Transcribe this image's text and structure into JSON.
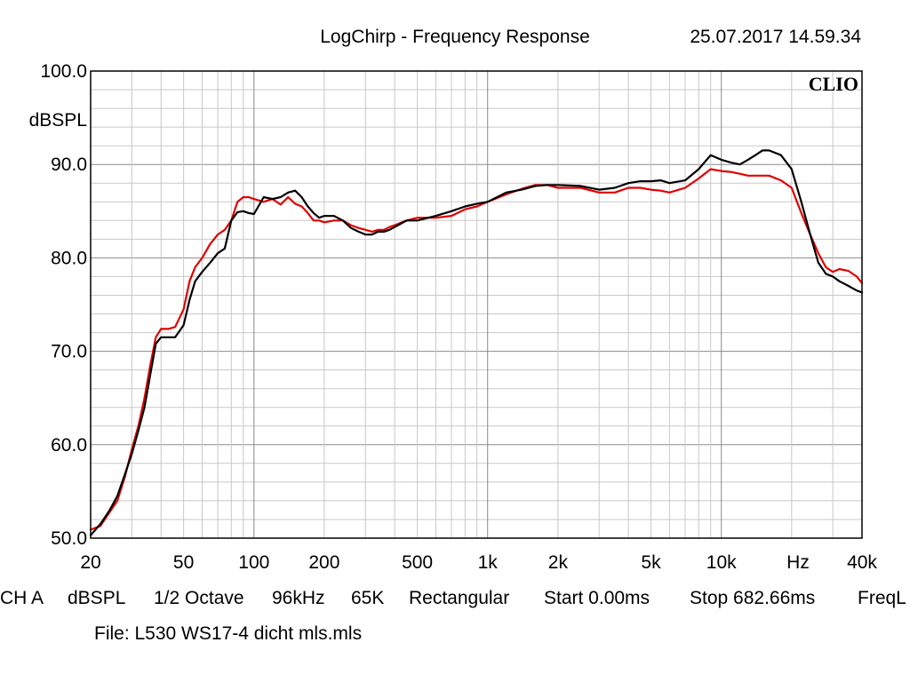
{
  "header": {
    "title": "LogChirp - Frequency Response",
    "timestamp": "25.07.2017 14.59.34",
    "logo": "CLIO"
  },
  "footer": {
    "settings": [
      "CH A",
      "dBSPL",
      "1/2 Octave",
      "96kHz",
      "65K",
      "Rectangular",
      "Start 0.00ms",
      "Stop 682.66ms",
      "FreqL"
    ],
    "file": "File: L530 WS17-4 dicht mls.mls"
  },
  "chart_data": {
    "type": "line",
    "title": "LogChirp - Frequency Response",
    "xlabel": "Hz",
    "ylabel": "dBSPL",
    "xscale": "log",
    "xlim": [
      20,
      40000
    ],
    "ylim": [
      50,
      100
    ],
    "grid": true,
    "x_ticks": [
      {
        "value": 20,
        "label": "20"
      },
      {
        "value": 50,
        "label": "50"
      },
      {
        "value": 100,
        "label": "100"
      },
      {
        "value": 200,
        "label": "200"
      },
      {
        "value": 500,
        "label": "500"
      },
      {
        "value": 1000,
        "label": "1k"
      },
      {
        "value": 2000,
        "label": "2k"
      },
      {
        "value": 5000,
        "label": "5k"
      },
      {
        "value": 10000,
        "label": "10k"
      },
      {
        "value": 40000,
        "label": "40k"
      }
    ],
    "y_ticks": [
      {
        "value": 100,
        "label": "100.0"
      },
      {
        "value": 90,
        "label": "90.0"
      },
      {
        "value": 80,
        "label": "80.0"
      },
      {
        "value": 70,
        "label": "70.0"
      },
      {
        "value": 60,
        "label": "60.0"
      },
      {
        "value": 50,
        "label": "50.0"
      }
    ],
    "series": [
      {
        "color": "#e00000",
        "x": [
          20,
          22,
          24,
          26,
          28,
          30,
          32,
          34,
          36,
          38,
          40,
          43,
          46,
          50,
          53,
          56,
          60,
          65,
          70,
          75,
          80,
          85,
          90,
          95,
          100,
          110,
          120,
          130,
          140,
          150,
          160,
          170,
          180,
          190,
          200,
          220,
          240,
          260,
          280,
          300,
          320,
          340,
          360,
          380,
          400,
          450,
          500,
          600,
          700,
          800,
          900,
          1000,
          1200,
          1400,
          1600,
          1800,
          2000,
          2500,
          3000,
          3500,
          4000,
          4500,
          5000,
          5500,
          6000,
          7000,
          8000,
          9000,
          10000,
          11000,
          12000,
          13000,
          14000,
          15000,
          16000,
          18000,
          20000,
          22000,
          24000,
          26000,
          28000,
          30000,
          32000,
          35000,
          38000,
          40000
        ],
        "y": [
          50.9,
          51.3,
          52.7,
          54.0,
          56.5,
          59.5,
          62.0,
          65.0,
          68.5,
          71.5,
          72.4,
          72.4,
          72.6,
          74.5,
          77.5,
          79.0,
          80.0,
          81.5,
          82.5,
          83.0,
          84.0,
          86.0,
          86.5,
          86.5,
          86.3,
          86.0,
          86.3,
          85.7,
          86.5,
          85.8,
          85.5,
          84.8,
          84.0,
          84.0,
          83.8,
          84.0,
          84.0,
          83.5,
          83.2,
          83.0,
          82.8,
          83.0,
          83.0,
          83.3,
          83.5,
          84.0,
          84.3,
          84.3,
          84.5,
          85.2,
          85.5,
          86.0,
          86.8,
          87.4,
          87.8,
          87.8,
          87.5,
          87.5,
          87.0,
          87.0,
          87.5,
          87.5,
          87.3,
          87.2,
          87.0,
          87.5,
          88.5,
          89.5,
          89.3,
          89.2,
          89.0,
          88.8,
          88.8,
          88.8,
          88.8,
          88.3,
          87.5,
          84.8,
          82.5,
          80.5,
          79.0,
          78.5,
          78.8,
          78.6,
          78.0,
          77.3
        ]
      },
      {
        "color": "#000000",
        "x": [
          20,
          22,
          24,
          26,
          28,
          30,
          32,
          34,
          36,
          38,
          40,
          43,
          46,
          50,
          53,
          56,
          60,
          65,
          70,
          75,
          80,
          85,
          90,
          95,
          100,
          110,
          120,
          130,
          140,
          150,
          160,
          170,
          180,
          190,
          200,
          220,
          240,
          260,
          280,
          300,
          320,
          340,
          360,
          380,
          400,
          450,
          500,
          600,
          700,
          800,
          900,
          1000,
          1200,
          1400,
          1600,
          1800,
          2000,
          2500,
          3000,
          3500,
          4000,
          4500,
          5000,
          5500,
          6000,
          7000,
          8000,
          9000,
          10000,
          11000,
          12000,
          13000,
          14000,
          15000,
          16000,
          18000,
          20000,
          22000,
          24000,
          26000,
          28000,
          30000,
          32000,
          35000,
          38000,
          40000
        ],
        "y": [
          50.3,
          51.5,
          52.9,
          54.5,
          56.8,
          59.0,
          61.5,
          64.0,
          67.5,
          70.8,
          71.5,
          71.5,
          71.5,
          72.8,
          75.5,
          77.5,
          78.5,
          79.5,
          80.5,
          81.0,
          84.0,
          84.9,
          85.0,
          84.8,
          84.7,
          86.5,
          86.3,
          86.5,
          87.0,
          87.2,
          86.5,
          85.5,
          84.8,
          84.3,
          84.5,
          84.5,
          84.0,
          83.2,
          82.8,
          82.5,
          82.5,
          82.8,
          82.8,
          83.0,
          83.3,
          84.0,
          84.0,
          84.5,
          85.0,
          85.5,
          85.8,
          86.0,
          87.0,
          87.3,
          87.7,
          87.8,
          87.8,
          87.7,
          87.3,
          87.5,
          88.0,
          88.2,
          88.2,
          88.3,
          88.0,
          88.3,
          89.5,
          91.0,
          90.5,
          90.2,
          90.0,
          90.5,
          91.0,
          91.5,
          91.5,
          91.0,
          89.5,
          86.0,
          82.5,
          79.5,
          78.3,
          78.0,
          77.5,
          77.0,
          76.5,
          76.3
        ]
      }
    ]
  }
}
